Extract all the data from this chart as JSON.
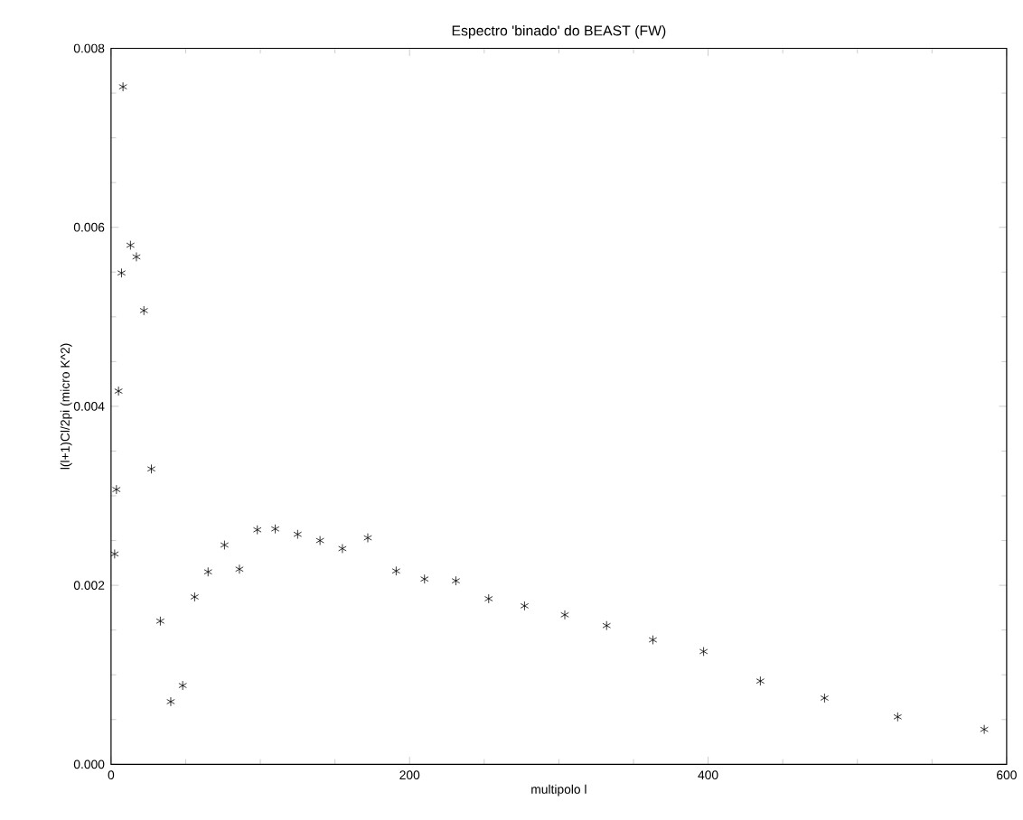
{
  "chart_data": {
    "type": "scatter",
    "title": "Espectro 'binado' do BEAST (FW)",
    "xlabel": "multipolo l",
    "ylabel": "l(l+1)Cl/2pi (micro K^2)",
    "x": [
      2.4,
      3.6,
      5,
      7,
      8,
      13,
      17,
      22,
      27,
      33,
      40,
      48,
      56,
      65,
      76,
      86,
      98,
      110,
      125,
      140,
      155,
      172,
      191,
      210,
      231,
      253,
      277,
      304,
      332,
      363,
      397,
      435,
      478,
      527,
      585
    ],
    "values": [
      0.00235,
      0.00307,
      0.00417,
      0.00549,
      0.00757,
      0.0058,
      0.00567,
      0.00507,
      0.0033,
      0.0016,
      0.0007,
      0.00088,
      0.00187,
      0.00215,
      0.00245,
      0.00218,
      0.00262,
      0.00263,
      0.00257,
      0.0025,
      0.00241,
      0.00253,
      0.00216,
      0.00207,
      0.00205,
      0.00185,
      0.00177,
      0.00167,
      0.00155,
      0.00139,
      0.00126,
      0.00093,
      0.00074,
      0.00053,
      0.00039
    ],
    "color": "#000000",
    "marker": "cross",
    "xlim": [
      0,
      600
    ],
    "xticks": [
      0,
      200,
      400,
      600
    ],
    "ylim": [
      0,
      0.008
    ],
    "yticks": [
      {
        "value": 0,
        "label": "0.000"
      },
      {
        "value": 0.002,
        "label": "0.002"
      },
      {
        "value": 0.004,
        "label": "0.004"
      },
      {
        "value": 0.006,
        "label": "0.006"
      },
      {
        "value": 0.008,
        "label": "0.008"
      }
    ],
    "grid": false
  }
}
